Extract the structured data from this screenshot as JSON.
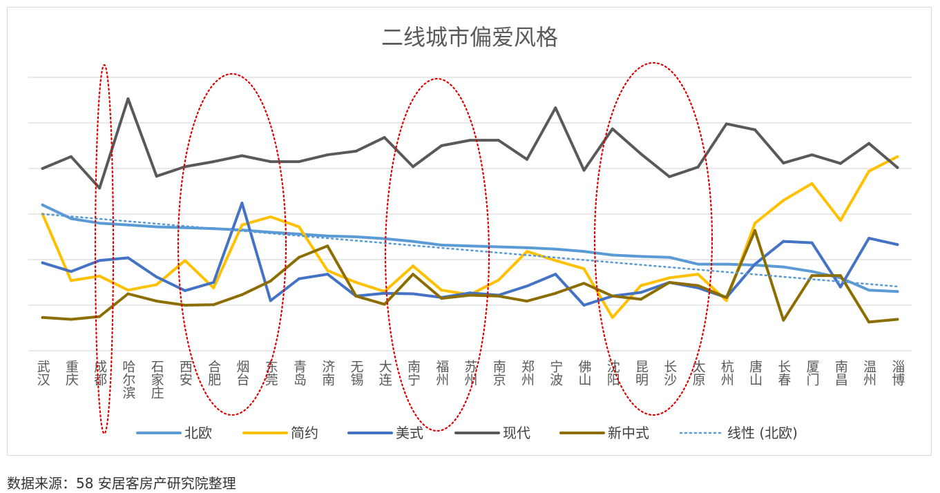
{
  "source_note": "数据来源：58 安居客房产研究院整理",
  "colors": {
    "北欧": "#5b9bd5",
    "简约": "#ffc000",
    "美式": "#4472c4",
    "现代": "#595959",
    "新中式": "#8c6d00",
    "trendline": "#5b9bd5",
    "gridline": "#d9d9d9",
    "highlight_ellipse": "#e00000"
  },
  "chart_data": {
    "type": "line",
    "title": "二线城市偏爱风格",
    "xlabel": "",
    "ylabel": "",
    "grid": true,
    "legend_position": "bottom",
    "y_tick_labels_shown": false,
    "ylim": [
      0,
      6
    ],
    "categories": [
      "武汉",
      "重庆",
      "成都",
      "哈尔滨",
      "石家庄",
      "西安",
      "合肥",
      "烟台",
      "东莞",
      "青岛",
      "济南",
      "无锡",
      "大连",
      "南宁",
      "福州",
      "苏州",
      "南京",
      "郑州",
      "宁波",
      "佛山",
      "沈阳",
      "昆明",
      "长沙",
      "太原",
      "杭州",
      "唐山",
      "长春",
      "厦门",
      "南昌",
      "温州",
      "淄博"
    ],
    "series": [
      {
        "name": "北欧",
        "values": [
          3.2,
          2.9,
          2.8,
          2.76,
          2.72,
          2.7,
          2.68,
          2.65,
          2.6,
          2.56,
          2.52,
          2.5,
          2.46,
          2.4,
          2.32,
          2.3,
          2.28,
          2.26,
          2.23,
          2.18,
          2.1,
          2.07,
          2.05,
          1.9,
          1.9,
          1.88,
          1.84,
          1.74,
          1.6,
          1.33,
          1.3
        ]
      },
      {
        "name": "简约",
        "values": [
          3.0,
          1.54,
          1.64,
          1.33,
          1.45,
          1.98,
          1.38,
          2.76,
          2.94,
          2.72,
          1.76,
          1.5,
          1.3,
          1.86,
          1.33,
          1.23,
          1.55,
          2.18,
          1.98,
          1.8,
          0.73,
          1.43,
          1.6,
          1.68,
          1.1,
          2.8,
          3.3,
          3.67,
          2.86,
          3.94,
          4.26
        ]
      },
      {
        "name": "美式",
        "values": [
          1.93,
          1.74,
          1.98,
          2.04,
          1.62,
          1.32,
          1.5,
          3.24,
          1.1,
          1.58,
          1.68,
          1.2,
          1.26,
          1.25,
          1.17,
          1.27,
          1.22,
          1.42,
          1.68,
          1.0,
          1.2,
          1.28,
          1.5,
          1.38,
          1.17,
          1.9,
          2.4,
          2.37,
          1.4,
          2.47,
          2.33
        ]
      },
      {
        "name": "现代",
        "values": [
          4.0,
          4.26,
          3.57,
          5.53,
          3.83,
          4.04,
          4.15,
          4.28,
          4.15,
          4.15,
          4.3,
          4.38,
          4.68,
          4.04,
          4.5,
          4.62,
          4.62,
          4.2,
          5.33,
          3.96,
          4.87,
          4.32,
          3.82,
          4.03,
          4.98,
          4.85,
          4.12,
          4.3,
          4.11,
          4.55,
          4.02
        ]
      },
      {
        "name": "新中式",
        "values": [
          0.73,
          0.69,
          0.75,
          1.25,
          1.09,
          1.0,
          1.01,
          1.23,
          1.53,
          2.05,
          2.3,
          1.2,
          1.02,
          1.68,
          1.15,
          1.22,
          1.2,
          1.09,
          1.26,
          1.48,
          1.2,
          1.13,
          1.5,
          1.43,
          1.17,
          2.64,
          0.67,
          1.65,
          1.65,
          0.63,
          0.69
        ]
      },
      {
        "name": "线性 (北欧)",
        "values": [
          3.0,
          2.947,
          2.894,
          2.841,
          2.788,
          2.735,
          2.682,
          2.629,
          2.576,
          2.523,
          2.47,
          2.417,
          2.364,
          2.311,
          2.258,
          2.205,
          2.152,
          2.099,
          2.046,
          1.993,
          1.94,
          1.887,
          1.834,
          1.781,
          1.728,
          1.675,
          1.622,
          1.569,
          1.516,
          1.463,
          1.41
        ]
      }
    ]
  }
}
